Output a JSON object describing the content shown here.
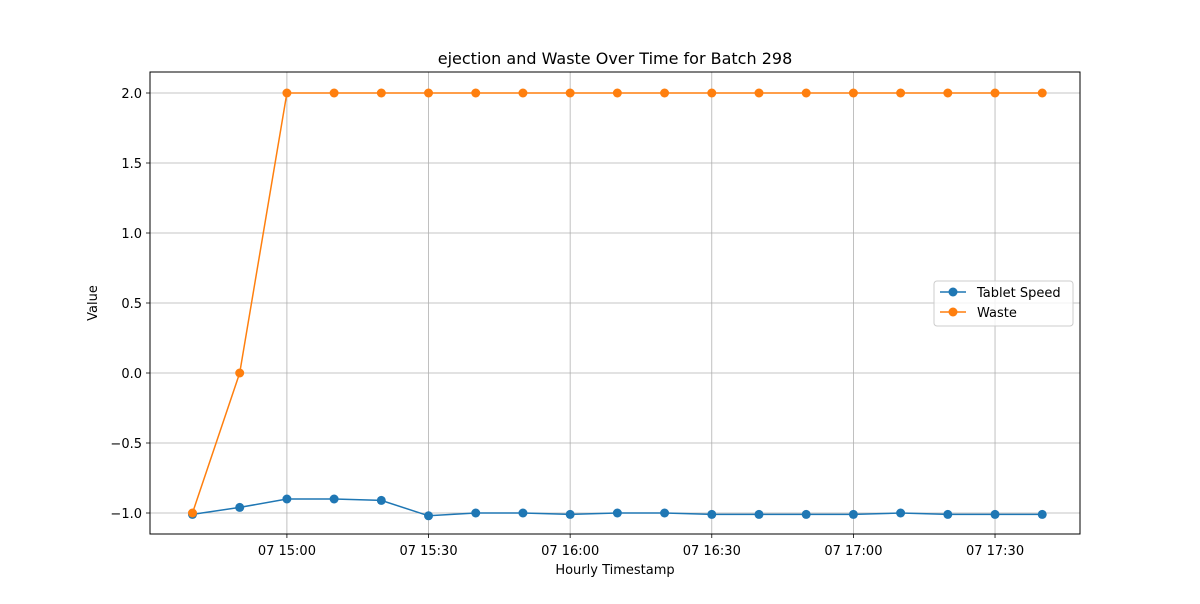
{
  "chart_data": {
    "type": "line",
    "title": "ejection and Waste Over Time for Batch 298",
    "xlabel": "Hourly Timestamp",
    "ylabel": "Value",
    "x": [
      "14:40",
      "14:50",
      "15:00",
      "15:10",
      "15:20",
      "15:30",
      "15:40",
      "15:50",
      "16:00",
      "16:10",
      "16:20",
      "16:30",
      "16:40",
      "16:50",
      "17:00",
      "17:10",
      "17:20",
      "17:30",
      "17:40"
    ],
    "xlim": [
      "14:31",
      "17:48"
    ],
    "ylim": [
      -1.15,
      2.15
    ],
    "x_ticks": [
      {
        "value": "15:00",
        "label": "07 15:00"
      },
      {
        "value": "15:30",
        "label": "07 15:30"
      },
      {
        "value": "16:00",
        "label": "07 16:00"
      },
      {
        "value": "16:30",
        "label": "07 16:30"
      },
      {
        "value": "17:00",
        "label": "07 17:00"
      },
      {
        "value": "17:30",
        "label": "07 17:30"
      }
    ],
    "y_ticks": [
      {
        "value": -1.0,
        "label": "−1.0"
      },
      {
        "value": -0.5,
        "label": "−0.5"
      },
      {
        "value": 0.0,
        "label": "0.0"
      },
      {
        "value": 0.5,
        "label": "0.5"
      },
      {
        "value": 1.0,
        "label": "1.0"
      },
      {
        "value": 1.5,
        "label": "1.5"
      },
      {
        "value": 2.0,
        "label": "2.0"
      }
    ],
    "series": [
      {
        "name": "Tablet Speed",
        "color": "#1f77b4",
        "values": [
          -1.01,
          -0.96,
          -0.9,
          -0.9,
          -0.91,
          -1.02,
          -1.0,
          -1.0,
          -1.01,
          -1.0,
          -1.0,
          -1.01,
          -1.01,
          -1.01,
          -1.01,
          -1.0,
          -1.01,
          -1.01,
          -1.01
        ]
      },
      {
        "name": "Waste",
        "color": "#ff7f0e",
        "values": [
          -1.0,
          0.0,
          2.0,
          2.0,
          2.0,
          2.0,
          2.0,
          2.0,
          2.0,
          2.0,
          2.0,
          2.0,
          2.0,
          2.0,
          2.0,
          2.0,
          2.0,
          2.0,
          2.0
        ]
      }
    ],
    "grid": true,
    "legend_position": "center-right"
  }
}
